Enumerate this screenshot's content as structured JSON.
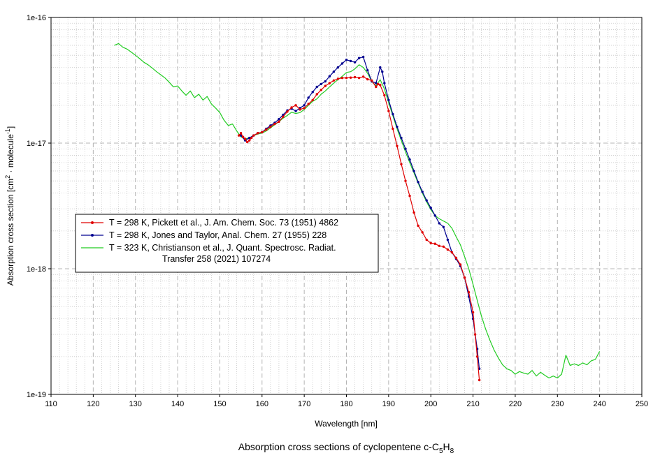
{
  "chart_data": {
    "type": "line",
    "title": "Absorption cross sections of cyclopentene c-C5H8",
    "title_parts": {
      "prefix": "Absorption cross sections of cyclopentene c-C",
      "sub1": "5",
      "mid": "H",
      "sub2": "8"
    },
    "xlabel": "Wavelength [nm]",
    "ylabel_parts": {
      "a": "Absorption cross section [cm",
      "sup1": "2",
      "b": " · molecule",
      "sup2": "-1",
      "c": "]"
    },
    "x_scale": "linear",
    "y_scale": "log",
    "xlim": [
      110,
      250
    ],
    "ylim": [
      1e-19,
      1e-16
    ],
    "x_ticks": [
      110,
      120,
      130,
      140,
      150,
      160,
      170,
      180,
      190,
      200,
      210,
      220,
      230,
      240,
      250
    ],
    "y_ticks": [
      {
        "value": 1e-19,
        "label": "1e-19"
      },
      {
        "value": 1e-18,
        "label": "1e-18"
      },
      {
        "value": 1e-17,
        "label": "1e-17"
      },
      {
        "value": 1e-16,
        "label": "1e-16"
      }
    ],
    "grid": true,
    "legend_position": "center-left",
    "series": [
      {
        "name": "T = 298 K, Pickett et al., J. Am. Chem. Soc. 73 (1951) 4862",
        "legend_lines": [
          "T = 298 K, Pickett et al., J. Am. Chem. Soc. 73 (1951) 4862"
        ],
        "color": "#e00000",
        "marker": "dot",
        "x": [
          154.5,
          155,
          155.5,
          156,
          156.5,
          157,
          157.5,
          158,
          159,
          160,
          161,
          162,
          163,
          164,
          165,
          166,
          167,
          168,
          169,
          170,
          171,
          172,
          173,
          174,
          175,
          176,
          177,
          178,
          179,
          180,
          181,
          182,
          183,
          184,
          185,
          186,
          187,
          187.5,
          188,
          189,
          190,
          191,
          192,
          193,
          194,
          195,
          196,
          197,
          198,
          199,
          200,
          201,
          202,
          203,
          204,
          205,
          206,
          207,
          208,
          209,
          210,
          210.5,
          211,
          211.5
        ],
        "y": [
          1.15e-17,
          1.2e-17,
          1.12e-17,
          1.08e-17,
          1.02e-17,
          1.05e-17,
          1.1e-17,
          1.15e-17,
          1.2e-17,
          1.22e-17,
          1.28e-17,
          1.35e-17,
          1.42e-17,
          1.48e-17,
          1.62e-17,
          1.78e-17,
          1.92e-17,
          2e-17,
          1.85e-17,
          1.9e-17,
          2.05e-17,
          2.2e-17,
          2.45e-17,
          2.65e-17,
          2.85e-17,
          3e-17,
          3.15e-17,
          3.25e-17,
          3.3e-17,
          3.3e-17,
          3.32e-17,
          3.35e-17,
          3.3e-17,
          3.38e-17,
          3.22e-17,
          3.15e-17,
          2.8e-17,
          2.95e-17,
          2.9e-17,
          2.4e-17,
          1.8e-17,
          1.3e-17,
          9.5e-18,
          6.8e-18,
          5e-18,
          3.8e-18,
          2.8e-18,
          2.2e-18,
          1.95e-18,
          1.7e-18,
          1.6e-18,
          1.58e-18,
          1.52e-18,
          1.5e-18,
          1.42e-18,
          1.35e-18,
          1.22e-18,
          1.08e-18,
          8.5e-19,
          6.5e-19,
          4.5e-19,
          3e-19,
          2e-19,
          1.3e-19
        ]
      },
      {
        "name": "T = 298 K, Jones and Taylor, Anal. Chem. 27 (1955) 228",
        "legend_lines": [
          "T = 298 K, Jones and Taylor, Anal. Chem. 27 (1955) 228"
        ],
        "color": "#000090",
        "marker": "dot",
        "x": [
          155,
          156,
          157,
          158,
          159,
          160,
          161,
          162,
          163,
          164,
          165,
          166,
          167,
          168,
          169,
          170,
          171,
          172,
          173,
          174,
          175,
          176,
          177,
          178,
          179,
          180,
          181,
          182,
          183,
          184,
          185,
          186,
          187,
          188,
          188.5,
          189,
          190,
          191,
          192,
          193,
          194,
          195,
          196,
          197,
          198,
          199,
          200,
          201,
          202,
          203,
          204,
          205,
          206,
          207,
          208,
          209,
          210,
          211,
          211.5
        ],
        "y": [
          1.15e-17,
          1.05e-17,
          1.1e-17,
          1.15e-17,
          1.2e-17,
          1.22e-17,
          1.3e-17,
          1.38e-17,
          1.45e-17,
          1.55e-17,
          1.68e-17,
          1.82e-17,
          1.88e-17,
          1.8e-17,
          1.9e-17,
          2e-17,
          2.3e-17,
          2.55e-17,
          2.8e-17,
          2.95e-17,
          3.1e-17,
          3.4e-17,
          3.7e-17,
          4e-17,
          4.3e-17,
          4.6e-17,
          4.5e-17,
          4.4e-17,
          4.75e-17,
          4.85e-17,
          3.8e-17,
          3.1e-17,
          3e-17,
          4e-17,
          3.7e-17,
          3e-17,
          2.2e-17,
          1.7e-17,
          1.35e-17,
          1.1e-17,
          9e-18,
          7.4e-18,
          6e-18,
          4.9e-18,
          4.1e-18,
          3.5e-18,
          3.05e-18,
          2.65e-18,
          2.3e-18,
          2.15e-18,
          1.7e-18,
          1.35e-18,
          1.2e-18,
          1.05e-18,
          8.5e-19,
          6e-19,
          4e-19,
          2.3e-19,
          1.6e-19
        ]
      },
      {
        "name": "T = 323 K, Christianson et al., J. Quant. Spectrosc. Radiat. Transfer 258 (2021) 107274",
        "legend_lines": [
          "T = 323 K, Christianson et al., J. Quant. Spectrosc. Radiat.",
          "Transfer 258 (2021) 107274"
        ],
        "color": "#22cc22",
        "marker": "none",
        "x": [
          125,
          126,
          127,
          128,
          129,
          130,
          131,
          132,
          133,
          134,
          135,
          136,
          137,
          138,
          139,
          140,
          141,
          142,
          143,
          144,
          145,
          146,
          147,
          148,
          149,
          150,
          151,
          152,
          153,
          154,
          155,
          156,
          157,
          158,
          159,
          160,
          161,
          162,
          163,
          164,
          165,
          166,
          167,
          168,
          169,
          170,
          171,
          172,
          173,
          174,
          175,
          176,
          177,
          178,
          179,
          180,
          181,
          182,
          183,
          184,
          185,
          186,
          187,
          188,
          189,
          190,
          191,
          192,
          193,
          194,
          195,
          196,
          197,
          198,
          199,
          200,
          201,
          202,
          203,
          204,
          205,
          206,
          207,
          208,
          209,
          210,
          211,
          212,
          213,
          214,
          215,
          216,
          217,
          218,
          219,
          220,
          221,
          222,
          223,
          224,
          225,
          226,
          227,
          228,
          229,
          230,
          231,
          232,
          233,
          234,
          235,
          236,
          237,
          238,
          239,
          240
        ],
        "y": [
          6e-17,
          6.2e-17,
          5.8e-17,
          5.6e-17,
          5.3e-17,
          5e-17,
          4.7e-17,
          4.4e-17,
          4.2e-17,
          3.95e-17,
          3.7e-17,
          3.5e-17,
          3.3e-17,
          3.05e-17,
          2.8e-17,
          2.85e-17,
          2.6e-17,
          2.4e-17,
          2.6e-17,
          2.3e-17,
          2.45e-17,
          2.2e-17,
          2.35e-17,
          2.05e-17,
          1.9e-17,
          1.75e-17,
          1.52e-17,
          1.38e-17,
          1.42e-17,
          1.25e-17,
          1.12e-17,
          1.08e-17,
          1.1e-17,
          1.15e-17,
          1.18e-17,
          1.2e-17,
          1.25e-17,
          1.32e-17,
          1.4e-17,
          1.48e-17,
          1.58e-17,
          1.66e-17,
          1.76e-17,
          1.72e-17,
          1.75e-17,
          1.85e-17,
          2e-17,
          2.15e-17,
          2.25e-17,
          2.45e-17,
          2.6e-17,
          2.8e-17,
          3e-17,
          3.2e-17,
          3.4e-17,
          3.65e-17,
          3.7e-17,
          3.9e-17,
          4.2e-17,
          4e-17,
          3.6e-17,
          3.1e-17,
          2.85e-17,
          3.2e-17,
          2.7e-17,
          2.1e-17,
          1.65e-17,
          1.3e-17,
          1.05e-17,
          8.5e-18,
          7e-18,
          5.8e-18,
          4.8e-18,
          4e-18,
          3.4e-18,
          2.95e-18,
          2.65e-18,
          2.5e-18,
          2.4e-18,
          2.3e-18,
          2.1e-18,
          1.8e-18,
          1.55e-18,
          1.25e-18,
          1e-18,
          7.5e-19,
          5.6e-19,
          4.2e-19,
          3.3e-19,
          2.7e-19,
          2.25e-19,
          1.95e-19,
          1.72e-19,
          1.6e-19,
          1.55e-19,
          1.45e-19,
          1.52e-19,
          1.48e-19,
          1.45e-19,
          1.55e-19,
          1.4e-19,
          1.5e-19,
          1.42e-19,
          1.35e-19,
          1.4e-19,
          1.35e-19,
          1.45e-19,
          2.05e-19,
          1.7e-19,
          1.75e-19,
          1.7e-19,
          1.78e-19,
          1.72e-19,
          1.85e-19,
          1.9e-19,
          2.2e-19
        ]
      }
    ]
  }
}
